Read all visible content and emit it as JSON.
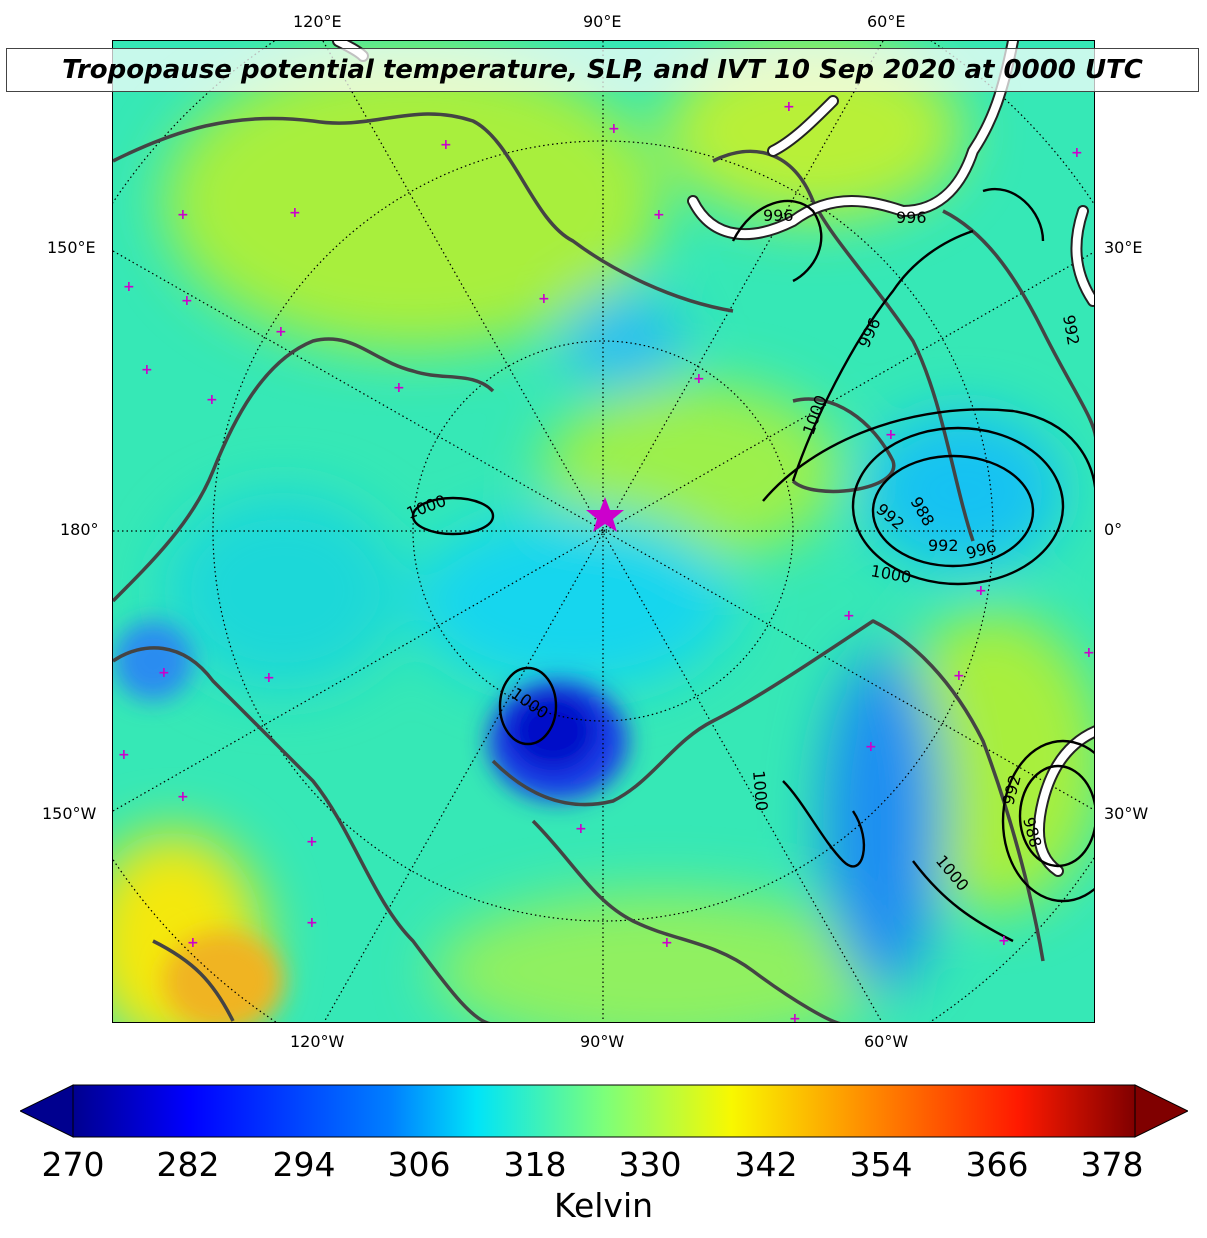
{
  "title": "Tropopause potential temperature, SLP, and IVT 10 Sep 2020 at 0000 UTC",
  "longitude_labels": {
    "top": [
      "120°E",
      "90°E",
      "60°E"
    ],
    "bottom": [
      "120°W",
      "90°W",
      "60°W"
    ],
    "left": [
      "150°E",
      "180°",
      "150°W"
    ],
    "right": [
      "30°E",
      "0°",
      "30°W"
    ]
  },
  "isobars": {
    "labels": [
      "996",
      "996",
      "996",
      "1000",
      "992",
      "988",
      "992",
      "996",
      "1000",
      "1000",
      "1000",
      "1000",
      "1000",
      "992",
      "988",
      "992"
    ]
  },
  "colorbar": {
    "ticks": [
      "270",
      "282",
      "294",
      "306",
      "318",
      "330",
      "342",
      "354",
      "366",
      "378"
    ],
    "unit": "Kelvin",
    "colormap": "jet",
    "extend": "both"
  },
  "colors": {
    "marker": "#cc00cc",
    "coastline": "#444444",
    "ivt": "#ffffff"
  }
}
